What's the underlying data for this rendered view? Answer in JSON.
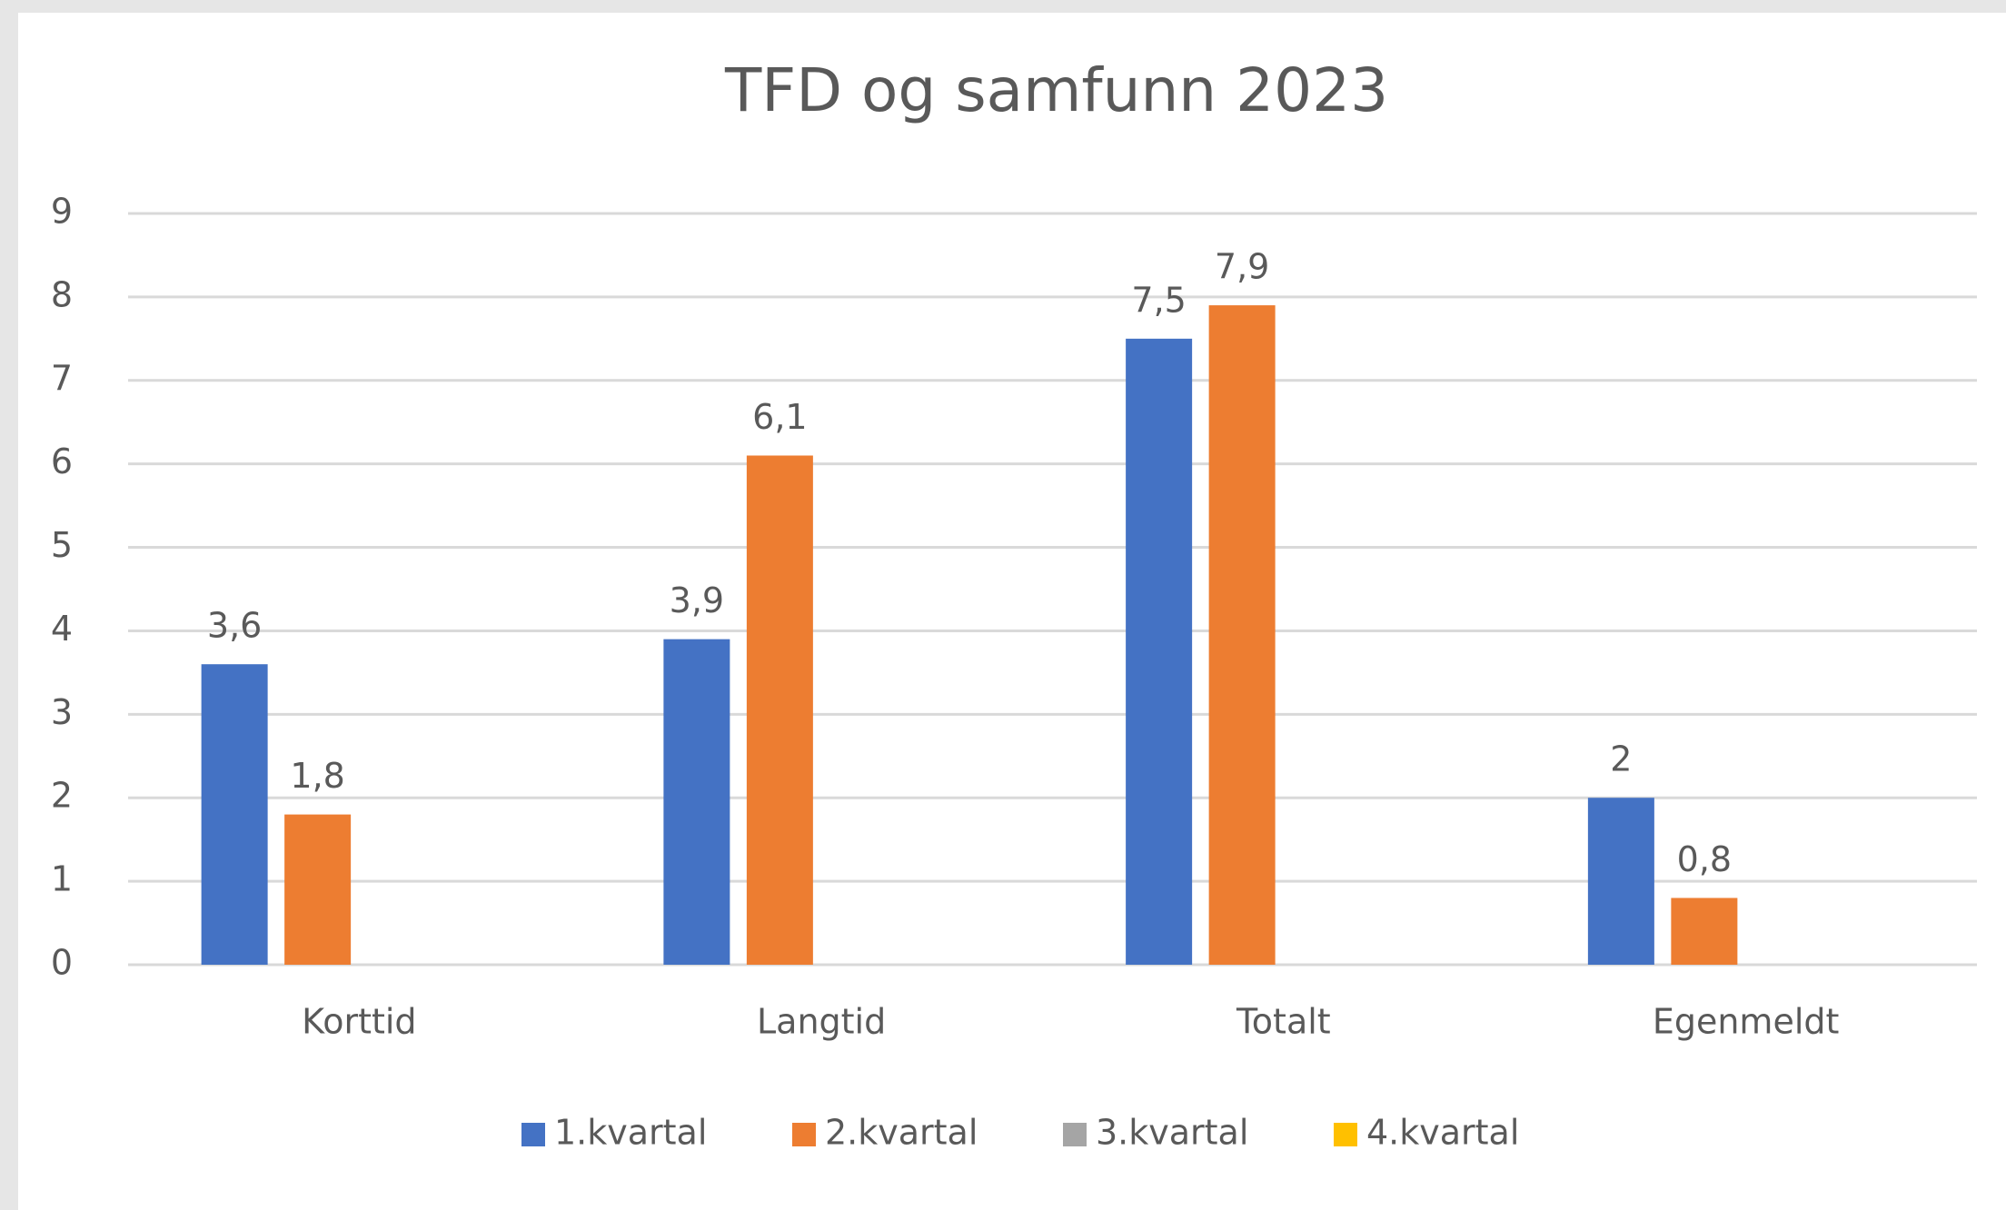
{
  "chart_data": {
    "type": "bar",
    "title": "TFD og samfunn 2023",
    "categories": [
      "Korttid",
      "Langtid",
      "Totalt",
      "Egenmeldt"
    ],
    "series": [
      {
        "name": "1.kvartal",
        "color": "#4472c4",
        "values": [
          3.6,
          3.9,
          7.5,
          2
        ],
        "value_labels": [
          "3,6",
          "3,9",
          "7,5",
          "2"
        ]
      },
      {
        "name": "2.kvartal",
        "color": "#ed7d31",
        "values": [
          1.8,
          6.1,
          7.9,
          0.8
        ],
        "value_labels": [
          "1,8",
          "6,1",
          "7,9",
          "0,8"
        ]
      },
      {
        "name": "3.kvartal",
        "color": "#a5a5a5",
        "values": [
          null,
          null,
          null,
          null
        ]
      },
      {
        "name": "4.kvartal",
        "color": "#ffc000",
        "values": [
          null,
          null,
          null,
          null
        ]
      }
    ],
    "ylim": [
      0,
      9
    ],
    "yticks": [
      0,
      1,
      2,
      3,
      4,
      5,
      6,
      7,
      8,
      9
    ],
    "grid": true,
    "legend": "bottom"
  }
}
